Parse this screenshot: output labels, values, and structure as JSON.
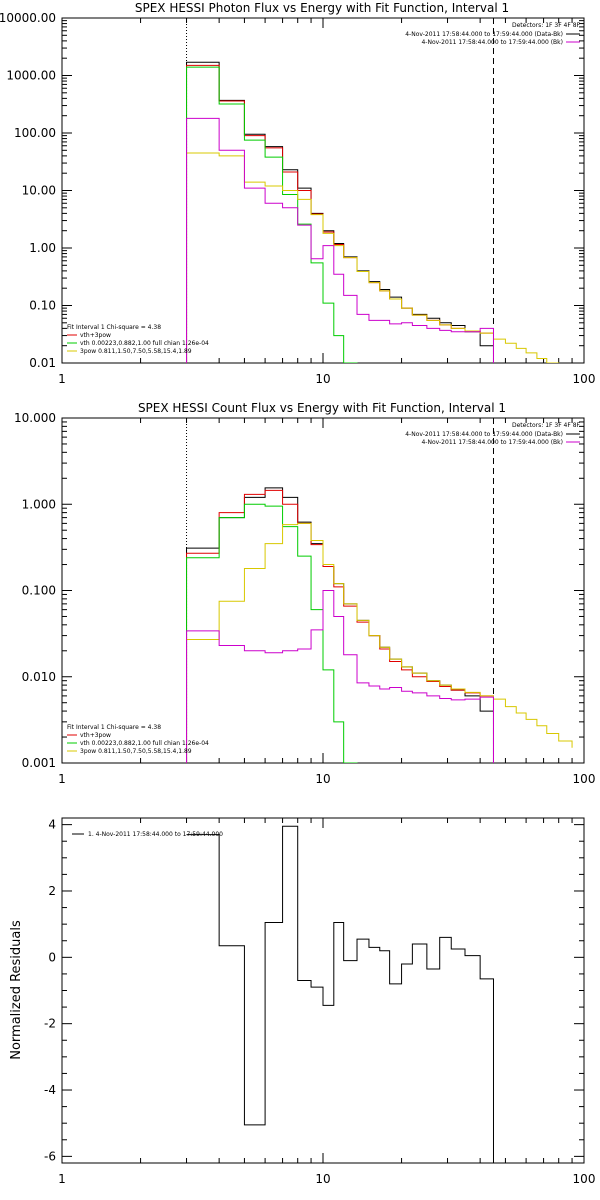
{
  "colors": {
    "data": "#000000",
    "bkg": "#cc00cc",
    "total": "#e00000",
    "thermal": "#00cc00",
    "powerlaw": "#d8c800",
    "residual": "#000000"
  },
  "chart_data": [
    {
      "type": "line",
      "title": "SPEX HESSI Photon Flux vs Energy with Fit Function, Interval 1",
      "xscale": "log",
      "yscale": "log",
      "xlim": [
        1,
        100
      ],
      "ylim": [
        0.01,
        10000
      ],
      "x_ticks": [
        "1",
        "10",
        "100"
      ],
      "y_ticks": [
        "0.01",
        "0.10",
        "1.00",
        "10.00",
        "100.00",
        "1000.00",
        "10000.00"
      ],
      "legend_header": "Detectors: 1F 3F 4F 8F",
      "legend": [
        {
          "key": "data",
          "text": "4-Nov-2011 17:58:44.000 to 17:59:44.000 (Data-Bk)"
        },
        {
          "key": "bkg",
          "text": "4-Nov-2011 17:58:44.000 to 17:59:44.000 (Bk)"
        }
      ],
      "annotation_lines": [
        {
          "key": "",
          "text": "Fit Interval 1   Chi-square = 4.38"
        },
        {
          "key": "total",
          "text": "vth+3pow"
        },
        {
          "key": "thermal",
          "text": "vth 0.00223,0.882,1.00   full chian 1.26e-04"
        },
        {
          "key": "powerlaw",
          "text": "3pow 0.811,1.50,7.50,5.58,15.4,1.89"
        }
      ],
      "vlines": [
        {
          "x": 3,
          "style": "dotted"
        },
        {
          "x": 45,
          "style": "dashed"
        }
      ],
      "series": [
        {
          "key": "data",
          "edges": [
            3,
            4,
            5,
            6,
            7,
            8,
            9,
            10,
            11,
            12,
            13.5,
            15,
            16.5,
            18,
            20,
            22,
            25,
            28,
            31,
            35,
            40,
            45
          ],
          "values": [
            1700,
            370,
            95,
            58,
            23,
            11,
            4,
            2,
            1.2,
            0.7,
            0.4,
            0.26,
            0.19,
            0.14,
            0.09,
            0.07,
            0.06,
            0.05,
            0.045,
            0.035,
            0.02
          ]
        },
        {
          "key": "total",
          "edges": [
            3,
            4,
            5,
            6,
            7,
            8,
            9,
            10,
            11,
            12,
            13.5,
            15,
            16.5,
            18,
            20,
            22,
            25,
            28,
            31,
            35,
            40,
            45
          ],
          "values": [
            1500,
            360,
            90,
            55,
            21,
            10,
            3.9,
            1.9,
            1.15,
            0.68,
            0.39,
            0.25,
            0.18,
            0.13,
            0.09,
            0.068,
            0.055,
            0.046,
            0.04,
            0.036,
            0.033
          ]
        },
        {
          "key": "thermal",
          "edges": [
            3,
            4,
            5,
            6,
            7,
            8,
            9,
            10,
            11,
            12,
            13.5
          ],
          "values": [
            1400,
            320,
            75,
            38,
            8.5,
            2.6,
            0.55,
            0.11,
            0.03,
            0.007
          ]
        },
        {
          "key": "powerlaw",
          "edges": [
            3,
            4,
            5,
            6,
            7,
            8,
            9,
            10,
            11,
            12,
            13.5,
            15,
            16.5,
            18,
            20,
            22,
            25,
            28,
            31,
            35,
            40,
            45,
            50,
            55,
            60,
            66,
            72,
            80
          ],
          "values": [
            45,
            40,
            14,
            12,
            10,
            7,
            3.8,
            1.8,
            1.1,
            0.68,
            0.39,
            0.25,
            0.18,
            0.13,
            0.09,
            0.068,
            0.055,
            0.046,
            0.04,
            0.036,
            0.033,
            0.026,
            0.022,
            0.018,
            0.015,
            0.012,
            0.01
          ]
        },
        {
          "key": "bkg",
          "edges": [
            3,
            4,
            5,
            6,
            7,
            8,
            9,
            10,
            11,
            12,
            13.5,
            15,
            16.5,
            18,
            20,
            22,
            25,
            28,
            31,
            35,
            40,
            45
          ],
          "values": [
            180,
            50,
            11,
            6,
            5,
            2.5,
            0.65,
            1.1,
            0.35,
            0.15,
            0.07,
            0.055,
            0.055,
            0.048,
            0.05,
            0.045,
            0.04,
            0.037,
            0.035,
            0.035,
            0.04
          ]
        }
      ]
    },
    {
      "type": "line",
      "title": "SPEX HESSI Count Flux vs Energy with Fit Function, Interval 1",
      "xscale": "log",
      "yscale": "log",
      "xlim": [
        1,
        100
      ],
      "ylim": [
        0.001,
        10
      ],
      "x_ticks": [
        "1",
        "10",
        "100"
      ],
      "y_ticks": [
        "0.001",
        "0.010",
        "0.100",
        "1.000",
        "10.000"
      ],
      "legend_header": "Detectors: 1F 3F 4F 8F",
      "legend": [
        {
          "key": "data",
          "text": "4-Nov-2011 17:58:44.000 to 17:59:44.000 (Data-Bk)"
        },
        {
          "key": "bkg",
          "text": "4-Nov-2011 17:58:44.000 to 17:59:44.000 (Bk)"
        }
      ],
      "annotation_lines": [
        {
          "key": "",
          "text": "Fit Interval 1   Chi-square = 4.38"
        },
        {
          "key": "total",
          "text": "vth+3pow"
        },
        {
          "key": "thermal",
          "text": "vth 0.00223,0.882,1.00   full chian 1.26e-04"
        },
        {
          "key": "powerlaw",
          "text": "3pow 0.811,1.50,7.50,5.58,15.4,1.89"
        }
      ],
      "vlines": [
        {
          "x": 3,
          "style": "dotted"
        },
        {
          "x": 45,
          "style": "dashed"
        }
      ],
      "series": [
        {
          "key": "data",
          "edges": [
            3,
            4,
            5,
            6,
            7,
            8,
            9,
            10,
            11,
            12,
            13.5,
            15,
            16.5,
            18,
            20,
            22,
            25,
            28,
            31,
            35,
            40,
            45
          ],
          "values": [
            0.31,
            0.7,
            1.2,
            1.55,
            1.2,
            0.62,
            0.35,
            0.19,
            0.12,
            0.07,
            0.045,
            0.03,
            0.022,
            0.016,
            0.013,
            0.011,
            0.009,
            0.008,
            0.007,
            0.006,
            0.004
          ]
        },
        {
          "key": "total",
          "edges": [
            3,
            4,
            5,
            6,
            7,
            8,
            9,
            10,
            11,
            12,
            13.5,
            15,
            16.5,
            18,
            20,
            22,
            25,
            28,
            31,
            35,
            40,
            45
          ],
          "values": [
            0.27,
            0.8,
            1.3,
            1.45,
            1.0,
            0.6,
            0.34,
            0.19,
            0.11,
            0.066,
            0.043,
            0.03,
            0.021,
            0.015,
            0.012,
            0.01,
            0.0088,
            0.0077,
            0.007,
            0.0065,
            0.006
          ]
        },
        {
          "key": "thermal",
          "edges": [
            3,
            4,
            5,
            6,
            7,
            8,
            9,
            10,
            11,
            12,
            13.5
          ],
          "values": [
            0.24,
            0.7,
            1.0,
            0.95,
            0.55,
            0.25,
            0.06,
            0.012,
            0.003,
            0.001
          ]
        },
        {
          "key": "powerlaw",
          "edges": [
            3,
            4,
            5,
            6,
            7,
            8,
            9,
            10,
            11,
            12,
            13.5,
            15,
            16.5,
            18,
            20,
            22,
            25,
            28,
            31,
            35,
            40,
            45,
            50,
            55,
            60,
            66,
            72,
            80,
            90
          ],
          "values": [
            0.027,
            0.075,
            0.18,
            0.35,
            0.58,
            0.6,
            0.38,
            0.2,
            0.12,
            0.07,
            0.045,
            0.03,
            0.022,
            0.016,
            0.013,
            0.011,
            0.009,
            0.008,
            0.0072,
            0.0066,
            0.006,
            0.0055,
            0.0045,
            0.0038,
            0.0032,
            0.0027,
            0.0022,
            0.0018,
            0.0015
          ]
        },
        {
          "key": "bkg",
          "edges": [
            3,
            4,
            5,
            6,
            7,
            8,
            9,
            10,
            11,
            12,
            13.5,
            15,
            16.5,
            18,
            20,
            22,
            25,
            28,
            31,
            35,
            40,
            45
          ],
          "values": [
            0.034,
            0.023,
            0.02,
            0.019,
            0.02,
            0.021,
            0.035,
            0.1,
            0.05,
            0.018,
            0.0085,
            0.0078,
            0.0072,
            0.0075,
            0.0068,
            0.0065,
            0.006,
            0.0056,
            0.0054,
            0.0055,
            0.0058
          ]
        }
      ]
    },
    {
      "type": "line",
      "title": "",
      "ylabel": "Normalized Residuals",
      "xscale": "log",
      "yscale": "linear",
      "xlim": [
        1,
        100
      ],
      "ylim": [
        -6.2,
        4.2
      ],
      "x_ticks": [
        "1",
        "10",
        "100"
      ],
      "y_ticks": [
        "-6",
        "-4",
        "-2",
        "0",
        "2",
        "4"
      ],
      "legend": [
        {
          "key": "residual",
          "text": "1.  4-Nov-2011 17:58:44.000 to 17:59:44.000"
        }
      ],
      "series": [
        {
          "key": "residual",
          "edges": [
            3,
            4,
            5,
            6,
            7,
            8,
            9,
            10,
            11,
            12,
            13.5,
            15,
            16.5,
            18,
            20,
            22,
            25,
            28,
            31,
            35,
            40,
            45
          ],
          "values": [
            3.7,
            0.35,
            -5.05,
            1.05,
            3.95,
            -0.7,
            -0.9,
            -1.45,
            1.05,
            -0.1,
            0.55,
            0.3,
            0.2,
            -0.8,
            -0.2,
            0.4,
            -0.35,
            0.6,
            0.25,
            0.05,
            -0.65
          ]
        }
      ]
    }
  ]
}
